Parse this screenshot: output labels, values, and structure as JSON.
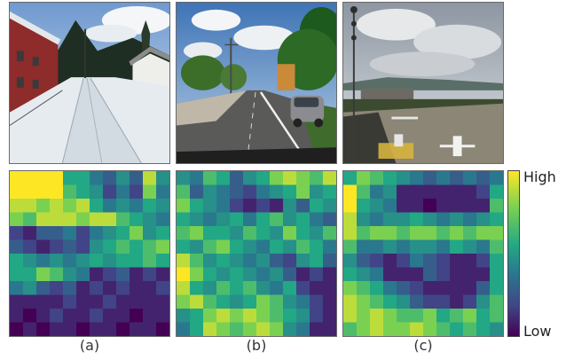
{
  "figure": {
    "panels": [
      {
        "caption": "(a)",
        "scene": "snowy-street-photo"
      },
      {
        "caption": "(b)",
        "scene": "suburban-road-photo"
      },
      {
        "caption": "(c)",
        "scene": "airfield-photo"
      }
    ],
    "colorbar": {
      "high_label": "High",
      "low_label": "Low",
      "colors": [
        "#440154",
        "#414487",
        "#2a788e",
        "#22a884",
        "#7ad151",
        "#fde725"
      ]
    }
  },
  "chart_data": {
    "type": "heatmap",
    "scale": {
      "min": 0,
      "max": 1,
      "high_label": "High",
      "low_label": "Low"
    },
    "grids": [
      {
        "name": "(a)",
        "rows": 12,
        "cols": 12,
        "values": [
          [
            1.0,
            1.0,
            1.0,
            1.0,
            0.6,
            0.6,
            0.4,
            0.3,
            0.5,
            0.3,
            0.9,
            0.5
          ],
          [
            1.0,
            1.0,
            1.0,
            1.0,
            0.7,
            0.6,
            0.5,
            0.2,
            0.4,
            0.2,
            0.8,
            0.4
          ],
          [
            0.9,
            0.9,
            0.8,
            0.9,
            0.8,
            0.9,
            0.6,
            0.4,
            0.5,
            0.4,
            0.6,
            0.5
          ],
          [
            0.8,
            0.7,
            0.9,
            0.9,
            0.9,
            0.8,
            0.9,
            0.9,
            0.7,
            0.6,
            0.5,
            0.4
          ],
          [
            0.2,
            0.1,
            0.3,
            0.3,
            0.4,
            0.2,
            0.4,
            0.5,
            0.6,
            0.8,
            0.5,
            0.6
          ],
          [
            0.3,
            0.2,
            0.1,
            0.2,
            0.3,
            0.2,
            0.5,
            0.6,
            0.7,
            0.6,
            0.7,
            0.8
          ],
          [
            0.6,
            0.5,
            0.4,
            0.5,
            0.4,
            0.5,
            0.6,
            0.5,
            0.6,
            0.6,
            0.7,
            0.6
          ],
          [
            0.6,
            0.6,
            0.8,
            0.7,
            0.5,
            0.4,
            0.1,
            0.2,
            0.3,
            0.1,
            0.2,
            0.1
          ],
          [
            0.4,
            0.5,
            0.3,
            0.2,
            0.3,
            0.1,
            0.2,
            0.1,
            0.2,
            0.1,
            0.1,
            0.2
          ],
          [
            0.1,
            0.1,
            0.1,
            0.1,
            0.2,
            0.1,
            0.1,
            0.2,
            0.1,
            0.1,
            0.1,
            0.1
          ],
          [
            0.1,
            0.0,
            0.1,
            0.2,
            0.1,
            0.1,
            0.2,
            0.1,
            0.1,
            0.0,
            0.1,
            0.1
          ],
          [
            0.0,
            0.1,
            0.0,
            0.1,
            0.1,
            0.0,
            0.1,
            0.1,
            0.0,
            0.1,
            0.1,
            0.0
          ]
        ]
      },
      {
        "name": "(b)",
        "rows": 12,
        "cols": 12,
        "values": [
          [
            0.5,
            0.4,
            0.7,
            0.6,
            0.3,
            0.5,
            0.6,
            0.8,
            0.9,
            0.8,
            0.7,
            0.9
          ],
          [
            0.7,
            0.3,
            0.5,
            0.4,
            0.3,
            0.2,
            0.4,
            0.5,
            0.6,
            0.8,
            0.5,
            0.6
          ],
          [
            0.8,
            0.6,
            0.5,
            0.4,
            0.2,
            0.1,
            0.2,
            0.1,
            0.5,
            0.3,
            0.6,
            0.5
          ],
          [
            0.6,
            0.5,
            0.4,
            0.5,
            0.6,
            0.4,
            0.6,
            0.7,
            0.5,
            0.6,
            0.4,
            0.3
          ],
          [
            0.7,
            0.8,
            0.6,
            0.6,
            0.5,
            0.7,
            0.6,
            0.5,
            0.8,
            0.6,
            0.5,
            0.7
          ],
          [
            0.6,
            0.5,
            0.7,
            0.8,
            0.6,
            0.5,
            0.4,
            0.6,
            0.5,
            0.7,
            0.6,
            0.4
          ],
          [
            0.9,
            0.7,
            0.5,
            0.6,
            0.5,
            0.4,
            0.5,
            0.3,
            0.2,
            0.5,
            0.6,
            0.3
          ],
          [
            1.0,
            0.8,
            0.6,
            0.5,
            0.6,
            0.5,
            0.4,
            0.5,
            0.3,
            0.1,
            0.2,
            0.1
          ],
          [
            0.9,
            0.6,
            0.5,
            0.7,
            0.6,
            0.7,
            0.5,
            0.4,
            0.6,
            0.2,
            0.1,
            0.1
          ],
          [
            0.8,
            0.9,
            0.7,
            0.6,
            0.5,
            0.6,
            0.8,
            0.7,
            0.5,
            0.4,
            0.2,
            0.1
          ],
          [
            0.5,
            0.6,
            0.8,
            0.9,
            0.8,
            0.9,
            0.8,
            0.7,
            0.6,
            0.5,
            0.2,
            0.1
          ],
          [
            0.4,
            0.6,
            0.9,
            0.8,
            0.7,
            0.8,
            0.9,
            0.8,
            0.5,
            0.4,
            0.1,
            0.1
          ]
        ]
      },
      {
        "name": "(c)",
        "rows": 12,
        "cols": 12,
        "values": [
          [
            0.6,
            0.8,
            0.7,
            0.6,
            0.5,
            0.4,
            0.3,
            0.4,
            0.3,
            0.4,
            0.3,
            0.4
          ],
          [
            1.0,
            0.7,
            0.4,
            0.5,
            0.1,
            0.1,
            0.1,
            0.1,
            0.1,
            0.1,
            0.2,
            0.6
          ],
          [
            1.0,
            0.6,
            0.5,
            0.4,
            0.1,
            0.1,
            0.0,
            0.1,
            0.1,
            0.1,
            0.1,
            0.7
          ],
          [
            0.9,
            0.5,
            0.4,
            0.5,
            0.5,
            0.6,
            0.5,
            0.4,
            0.5,
            0.4,
            0.5,
            0.6
          ],
          [
            0.9,
            0.7,
            0.8,
            0.8,
            0.7,
            0.8,
            0.8,
            0.7,
            0.8,
            0.7,
            0.8,
            0.8
          ],
          [
            0.7,
            0.4,
            0.4,
            0.5,
            0.4,
            0.5,
            0.5,
            0.4,
            0.6,
            0.5,
            0.4,
            0.7
          ],
          [
            0.5,
            0.3,
            0.2,
            0.1,
            0.2,
            0.4,
            0.3,
            0.2,
            0.1,
            0.1,
            0.2,
            0.6
          ],
          [
            0.6,
            0.5,
            0.4,
            0.1,
            0.1,
            0.1,
            0.3,
            0.2,
            0.1,
            0.1,
            0.1,
            0.6
          ],
          [
            0.8,
            0.7,
            0.6,
            0.4,
            0.3,
            0.2,
            0.1,
            0.1,
            0.1,
            0.1,
            0.3,
            0.6
          ],
          [
            0.9,
            0.8,
            0.7,
            0.6,
            0.5,
            0.3,
            0.2,
            0.2,
            0.1,
            0.2,
            0.5,
            0.7
          ],
          [
            0.9,
            0.8,
            0.9,
            0.8,
            0.7,
            0.7,
            0.8,
            0.6,
            0.7,
            0.8,
            0.6,
            0.7
          ],
          [
            0.7,
            0.8,
            0.9,
            0.8,
            0.8,
            0.9,
            0.8,
            0.7,
            0.6,
            0.7,
            0.6,
            0.5
          ]
        ]
      }
    ]
  }
}
